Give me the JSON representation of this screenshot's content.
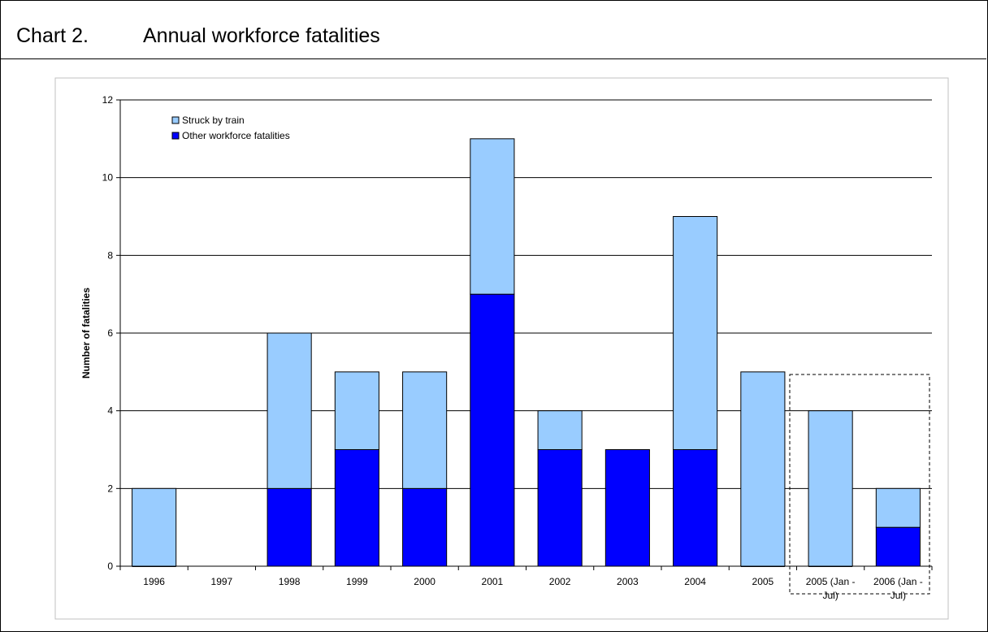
{
  "header": {
    "chart_number": "Chart 2.",
    "title": "Annual workforce fatalities"
  },
  "chart_data": {
    "type": "bar",
    "stacked": true,
    "categories": [
      "1996",
      "1997",
      "1998",
      "1999",
      "2000",
      "2001",
      "2002",
      "2003",
      "2004",
      "2005",
      "2005 (Jan - Jul)",
      "2006 (Jan - Jul)"
    ],
    "category_lines": [
      [
        "1996"
      ],
      [
        "1997"
      ],
      [
        "1998"
      ],
      [
        "1999"
      ],
      [
        "2000"
      ],
      [
        "2001"
      ],
      [
        "2002"
      ],
      [
        "2003"
      ],
      [
        "2004"
      ],
      [
        "2005"
      ],
      [
        "2005 (Jan -",
        "Jul)"
      ],
      [
        "2006 (Jan -",
        "Jul)"
      ]
    ],
    "series": [
      {
        "name": "Other workforce fatalities",
        "color": "#0000FF",
        "values": [
          0,
          0,
          2,
          3,
          2,
          7,
          3,
          3,
          3,
          0,
          0,
          1
        ]
      },
      {
        "name": "Struck by train",
        "color": "#99CCFF",
        "values": [
          2,
          0,
          4,
          2,
          3,
          4,
          1,
          0,
          6,
          5,
          4,
          1
        ]
      }
    ],
    "legend_order": [
      "Struck by train",
      "Other workforce fatalities"
    ],
    "legend_position": "top-left",
    "ylabel": "Number of fatalities",
    "xlabel": "",
    "ylim": [
      0,
      12
    ],
    "yticks": [
      0,
      2,
      4,
      6,
      8,
      10,
      12
    ],
    "grid": true,
    "highlighted_categories": [
      "2005 (Jan - Jul)",
      "2006 (Jan - Jul)"
    ]
  }
}
